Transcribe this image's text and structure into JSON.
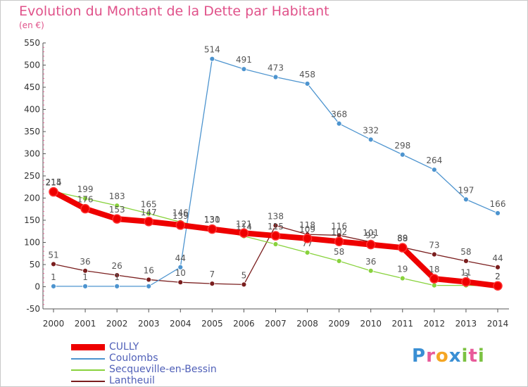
{
  "header": {
    "title": "Evolution du Montant de la Dette par Habitant",
    "unit": "(en €)"
  },
  "logo": {
    "text": "Proxiti",
    "letters": [
      "P",
      "r",
      "o",
      "x",
      "i",
      "t",
      "i"
    ],
    "letter_colors": [
      "#3a8fd4",
      "#e85a9a",
      "#f5a623",
      "#3a8fd4",
      "#7cc242",
      "#e85a9a",
      "#7cc242"
    ]
  },
  "chart_data": {
    "type": "line",
    "title": "Evolution du Montant de la Dette par Habitant",
    "ylabel": "(en €)",
    "xlabel": "",
    "ylim": [
      -50,
      550
    ],
    "yticks": [
      -50,
      0,
      50,
      100,
      150,
      200,
      250,
      300,
      350,
      400,
      450,
      500,
      550
    ],
    "grid": false,
    "legend_position": "bottom-left",
    "x": [
      "2000",
      "2001",
      "2002",
      "2003",
      "2004",
      "2005",
      "2006",
      "2007",
      "2008",
      "2009",
      "2010",
      "2011",
      "2012",
      "2013",
      "2014"
    ],
    "series": [
      {
        "name": "Lantheuil",
        "color": "#7a1e1e",
        "values": [
          51,
          36,
          26,
          16,
          10,
          7,
          5,
          138,
          118,
          116,
          101,
          89,
          73,
          58,
          44
        ],
        "labels": [
          "51",
          "36",
          "26",
          "16",
          "10",
          "7",
          "5",
          "138",
          "118",
          "116",
          "101",
          "89",
          "73",
          "58",
          "44"
        ]
      },
      {
        "name": "Secqueville-en-Bessin",
        "color": "#88d23c",
        "values": [
          215,
          199,
          183,
          165,
          146,
          131,
          114,
          96,
          77,
          58,
          36,
          19,
          3,
          3,
          2
        ],
        "labels": [
          "215",
          "199",
          "183",
          "165",
          "146",
          "131",
          "114",
          "",
          "77",
          "58",
          "36",
          "19",
          "",
          "3",
          "2"
        ]
      },
      {
        "name": "Coulombs",
        "color": "#4d94cf",
        "values": [
          1,
          1,
          1,
          1,
          44,
          514,
          491,
          473,
          458,
          368,
          332,
          298,
          264,
          197,
          166
        ],
        "labels": [
          "1",
          "1",
          "1",
          "",
          "44",
          "514",
          "491",
          "473",
          "458",
          "368",
          "332",
          "298",
          "264",
          "197",
          "166"
        ]
      },
      {
        "name": "CULLY",
        "color": "#ee0000",
        "values": [
          214,
          176,
          153,
          147,
          139,
          130,
          121,
          115,
          109,
          102,
          95,
          88,
          18,
          11,
          2
        ],
        "labels": [
          "214",
          "176",
          "153",
          "147",
          "139",
          "130",
          "121",
          "115",
          "109",
          "102",
          "95",
          "88",
          "18",
          "11",
          "2"
        ]
      }
    ],
    "legend": [
      {
        "name": "CULLY",
        "color": "#ee0000"
      },
      {
        "name": "Coulombs",
        "color": "#4d94cf"
      },
      {
        "name": "Secqueville-en-Bessin",
        "color": "#88d23c"
      },
      {
        "name": "Lantheuil",
        "color": "#7a1e1e"
      }
    ]
  }
}
